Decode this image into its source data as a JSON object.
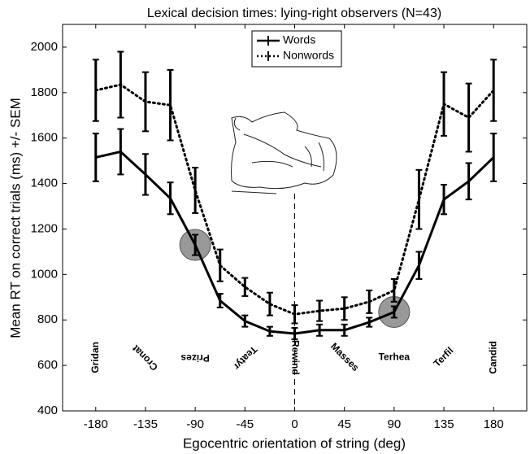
{
  "chart_data": {
    "type": "line",
    "title": "Lexical decision times: lying-right observers (N=43)",
    "x_label": "Egocentric orientation of string (deg)",
    "y_label": "Mean RT on correct trials (ms) +/- SEM",
    "x": [
      -180,
      -157.5,
      -135,
      -112.5,
      -90,
      -67.5,
      -45,
      -22.5,
      0,
      22.5,
      45,
      67.5,
      90,
      112.5,
      135,
      157.5,
      180
    ],
    "series": [
      {
        "name": "Words",
        "color": "#000000",
        "style": "solid",
        "values": [
          1515,
          1540,
          1440,
          1335,
          1130,
          885,
          795,
          750,
          740,
          755,
          755,
          790,
          835,
          1040,
          1330,
          1410,
          1515
        ],
        "errors": [
          105,
          100,
          90,
          70,
          45,
          30,
          25,
          20,
          25,
          25,
          25,
          20,
          25,
          60,
          65,
          80,
          105
        ]
      },
      {
        "name": "Nonwords",
        "color": "#000000",
        "style": "dotted",
        "values": [
          1810,
          1835,
          1760,
          1745,
          1370,
          1040,
          945,
          870,
          825,
          840,
          850,
          880,
          930,
          1330,
          1750,
          1690,
          1810
        ],
        "errors": [
          135,
          145,
          130,
          155,
          100,
          70,
          40,
          50,
          40,
          45,
          50,
          50,
          50,
          130,
          140,
          150,
          135
        ]
      }
    ],
    "string_labels": [
      {
        "x": -180,
        "text": "Gridan"
      },
      {
        "x": -135,
        "text": "Cronat"
      },
      {
        "x": -90,
        "text": "Prizes"
      },
      {
        "x": -45,
        "text": "Teatyr"
      },
      {
        "x": 0,
        "text": "Rewind"
      },
      {
        "x": 45,
        "text": "Masses"
      },
      {
        "x": 90,
        "text": "Terhea"
      },
      {
        "x": 135,
        "text": "Terfil"
      },
      {
        "x": 180,
        "text": "Candid"
      }
    ],
    "label_y": 635,
    "highlights": [
      {
        "x": -90,
        "y": 1130
      },
      {
        "x": 90,
        "y": 835
      }
    ],
    "xlim": [
      -210,
      210
    ],
    "ylim": [
      400,
      2100
    ],
    "xticks": [
      -180,
      -135,
      -90,
      -45,
      0,
      45,
      90,
      135,
      180
    ],
    "yticks": [
      400,
      600,
      800,
      1000,
      1200,
      1400,
      1600,
      1800,
      2000
    ],
    "grid": false,
    "legend": "top"
  }
}
